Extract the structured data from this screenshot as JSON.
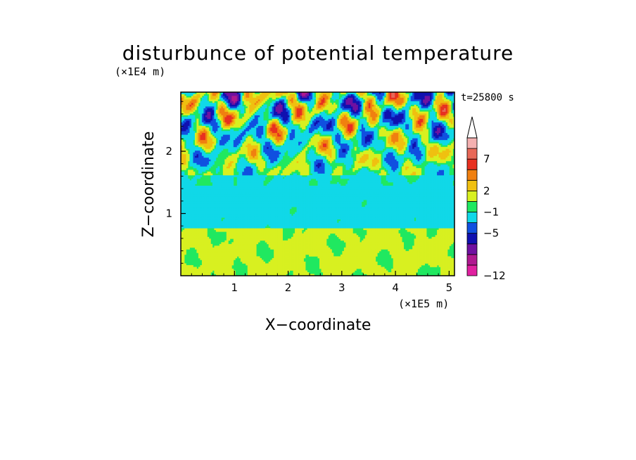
{
  "chart_data": {
    "type": "heatmap",
    "title": "disturbunce of potential temperature",
    "time_label": "t=25800 s",
    "xlabel": "X−coordinate",
    "ylabel": "Z−coordinate",
    "x_unit": "(×1E5 m)",
    "y_unit": "(×1E4 m)",
    "xlim": [
      0,
      5.1
    ],
    "ylim": [
      0,
      2.95
    ],
    "x_ticks": [
      "1",
      "2",
      "3",
      "4",
      "5"
    ],
    "y_ticks": [
      "1",
      "2"
    ],
    "colorbar": {
      "labels": [
        "7",
        "2",
        "−1",
        "−5",
        "−12"
      ],
      "label_values": [
        7,
        2,
        -1,
        -5,
        -12
      ],
      "colors": [
        "#e020a0",
        "#b01890",
        "#7010a0",
        "#1010b0",
        "#1050e0",
        "#10d8e8",
        "#20e860",
        "#d8f020",
        "#f0c010",
        "#f08010",
        "#e83020",
        "#e86858",
        "#f4b0b0"
      ],
      "extend": "max"
    },
    "bands": [
      {
        "z": [
          0.0,
          0.8
        ],
        "description_value": "mostly 0 to 2",
        "dominant_color": "#d8f020"
      },
      {
        "z": [
          0.8,
          1.6
        ],
        "description_value": "mostly -1 to 0",
        "dominant_color": "#20e860"
      },
      {
        "z": [
          1.6,
          2.95
        ],
        "description_value": "alternating -5 to 7",
        "dominant_color": "#f0c010"
      }
    ]
  }
}
